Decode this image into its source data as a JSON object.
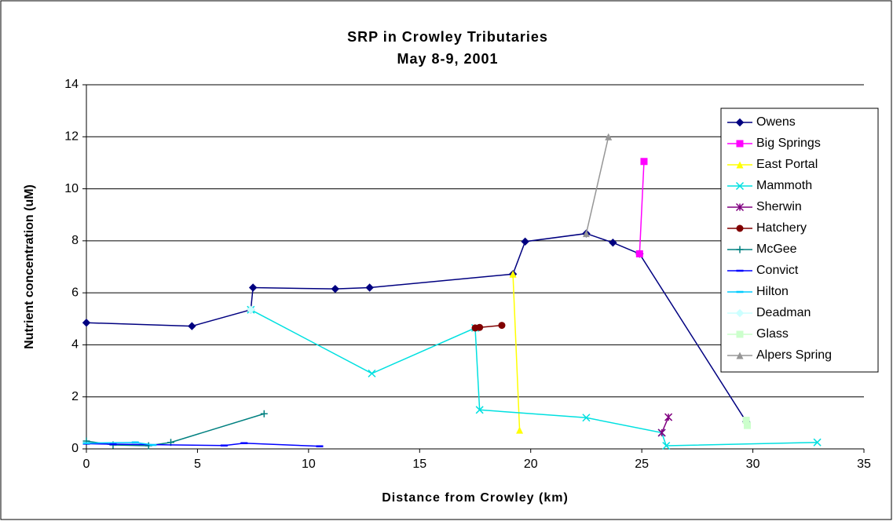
{
  "chart_data": {
    "type": "line",
    "title": "SRP in Crowley Tributaries",
    "subtitle": "May 8-9, 2001",
    "x_label": "Distance from Crowley (km)",
    "y_label": "Nutrient concentration (uM)",
    "xlim": [
      0,
      35
    ],
    "xticks": [
      0,
      5,
      10,
      15,
      20,
      25,
      30,
      35
    ],
    "ylim": [
      0,
      14
    ],
    "yticks": [
      0,
      2,
      4,
      6,
      8,
      10,
      12,
      14
    ],
    "grid": true,
    "legend": "right",
    "series": [
      {
        "name": "Owens",
        "color": "#000080",
        "marker": "diamond",
        "x": [
          0,
          4.75,
          7.4,
          7.5,
          11.2,
          12.75,
          19.2,
          19.75,
          22.5,
          23.7,
          24.9,
          29.7
        ],
        "values": [
          4.85,
          4.72,
          5.35,
          6.2,
          6.15,
          6.2,
          6.72,
          7.97,
          8.28,
          7.93,
          7.5,
          1.05
        ]
      },
      {
        "name": "Big Springs",
        "color": "#ff00ff",
        "marker": "square",
        "x": [
          24.9,
          25.1
        ],
        "values": [
          7.5,
          11.05
        ]
      },
      {
        "name": "East Portal",
        "color": "#ffff00",
        "marker": "triangle",
        "x": [
          19.2,
          19.5
        ],
        "values": [
          6.72,
          0.72
        ]
      },
      {
        "name": "Mammoth",
        "color": "#00e0e0",
        "marker": "x",
        "x": [
          7.4,
          12.85,
          17.5,
          17.7,
          22.5,
          25.9,
          26.1,
          32.9
        ],
        "values": [
          5.35,
          2.9,
          4.65,
          1.5,
          1.2,
          0.62,
          0.12,
          0.25
        ]
      },
      {
        "name": "Sherwin",
        "color": "#800080",
        "marker": "star",
        "x": [
          25.9,
          26.2
        ],
        "values": [
          0.62,
          1.22
        ]
      },
      {
        "name": "Hatchery",
        "color": "#800000",
        "marker": "circle",
        "x": [
          17.5,
          17.7,
          18.7
        ],
        "values": [
          4.65,
          4.67,
          4.75
        ]
      },
      {
        "name": "McGee",
        "color": "#008080",
        "marker": "plus",
        "x": [
          0,
          1.2,
          2.8,
          3.8,
          8.0
        ],
        "values": [
          0.3,
          0.15,
          0.12,
          0.25,
          1.35
        ]
      },
      {
        "name": "Convict",
        "color": "#0000ff",
        "marker": "dash",
        "x": [
          0,
          1.2,
          6.2,
          7.1,
          10.5
        ],
        "values": [
          0.2,
          0.18,
          0.13,
          0.22,
          0.1
        ]
      },
      {
        "name": "Hilton",
        "color": "#00ccff",
        "marker": "dash",
        "x": [
          0,
          2.2,
          3.0
        ],
        "values": [
          0.22,
          0.25,
          0.15
        ]
      },
      {
        "name": "Deadman",
        "color": "#ccffff",
        "marker": "diamond",
        "x": [
          7.4
        ],
        "values": [
          5.35
        ]
      },
      {
        "name": "Glass",
        "color": "#ccffcc",
        "marker": "square",
        "x": [
          29.7,
          29.75
        ],
        "values": [
          1.1,
          0.9
        ]
      },
      {
        "name": "Alpers Spring",
        "color": "#969696",
        "marker": "triangle",
        "x": [
          22.5,
          23.5
        ],
        "values": [
          8.28,
          12.0
        ]
      }
    ]
  }
}
